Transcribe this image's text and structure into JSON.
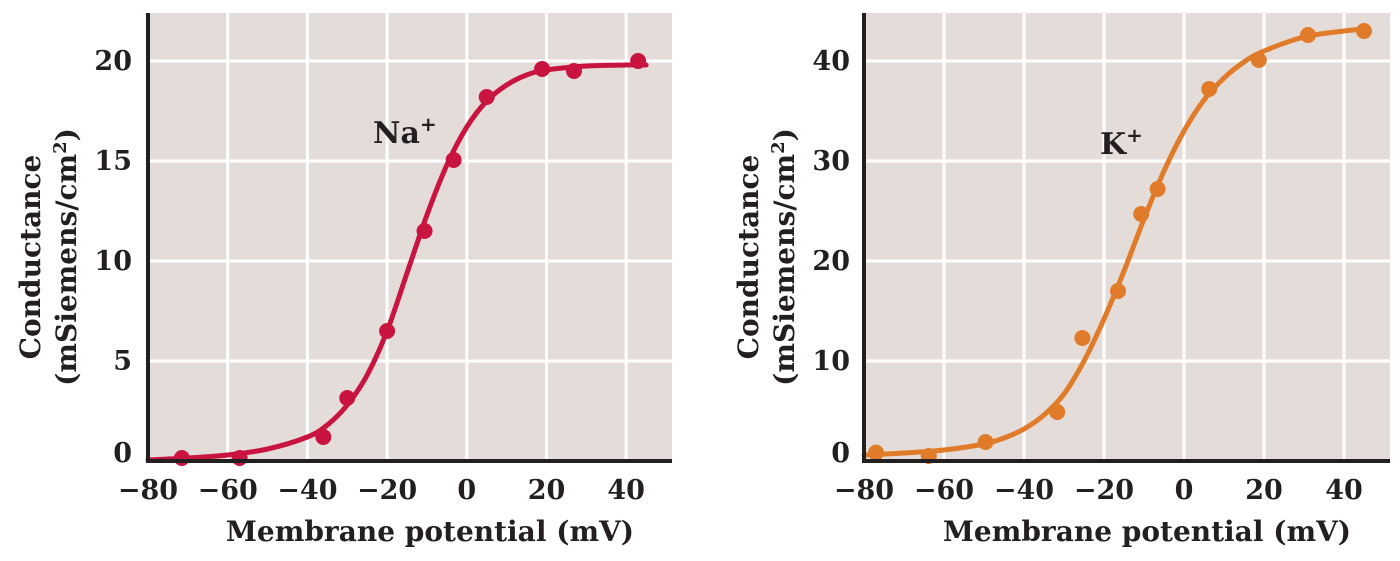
{
  "chart_data": [
    {
      "type": "scatter",
      "title": "",
      "series_label": "Na",
      "series_label_sup": "+",
      "xlabel": "Membrane potential (mV)",
      "ylabel_line1": "Conductance",
      "ylabel_line2": "(mSiemens/cm",
      "ylabel_sup": "2",
      "ylabel_close": ")",
      "xlim": [
        -80,
        51.5
      ],
      "ylim": [
        0,
        22.4
      ],
      "xticks": [
        -80,
        -60,
        -40,
        -20,
        0,
        20,
        40
      ],
      "xtick_labels": [
        "−80",
        "−60",
        "−40",
        "−20",
        "0",
        "20",
        "40"
      ],
      "yticks": [
        0,
        5,
        10,
        15,
        20
      ],
      "ytick_labels": [
        "0",
        "5",
        "10",
        "15",
        "20"
      ],
      "grid": true,
      "color": "#c8143f",
      "points": [
        {
          "x": -71.5,
          "y": 0.15
        },
        {
          "x": -57,
          "y": 0.15
        },
        {
          "x": -36,
          "y": 1.2
        },
        {
          "x": -30,
          "y": 3.15
        },
        {
          "x": -20,
          "y": 6.5
        },
        {
          "x": -10.6,
          "y": 11.5
        },
        {
          "x": -3.3,
          "y": 15.05
        },
        {
          "x": 5,
          "y": 18.2
        },
        {
          "x": 18.9,
          "y": 19.6
        },
        {
          "x": 26.9,
          "y": 19.5
        },
        {
          "x": 43,
          "y": 20.0
        }
      ],
      "fit_curve": [
        [
          -80,
          0.05
        ],
        [
          -70,
          0.15
        ],
        [
          -60,
          0.3
        ],
        [
          -50,
          0.6
        ],
        [
          -40,
          1.2
        ],
        [
          -35,
          1.8
        ],
        [
          -30,
          2.8
        ],
        [
          -25,
          4.3
        ],
        [
          -20,
          6.5
        ],
        [
          -15,
          9.4
        ],
        [
          -10,
          12.3
        ],
        [
          -5,
          14.8
        ],
        [
          0,
          16.7
        ],
        [
          5,
          18.0
        ],
        [
          10,
          18.8
        ],
        [
          15,
          19.3
        ],
        [
          20,
          19.55
        ],
        [
          30,
          19.75
        ],
        [
          40,
          19.8
        ],
        [
          45,
          19.8
        ]
      ],
      "label_position": {
        "x": -18,
        "y": 16.3
      }
    },
    {
      "type": "scatter",
      "title": "",
      "series_label": "K",
      "series_label_sup": "+",
      "xlabel": "Membrane potential (mV)",
      "ylabel_line1": "Conductance",
      "ylabel_line2": "(mSiemens/cm",
      "ylabel_sup": "2",
      "ylabel_close": ")",
      "xlim": [
        -80,
        51.5
      ],
      "ylim": [
        0,
        44.8
      ],
      "xticks": [
        -80,
        -60,
        -40,
        -20,
        0,
        20,
        40
      ],
      "xtick_labels": [
        "−80",
        "−60",
        "−40",
        "−20",
        "0",
        "20",
        "40"
      ],
      "yticks": [
        0,
        10,
        20,
        30,
        40
      ],
      "ytick_labels": [
        "0",
        "10",
        "20",
        "30",
        "40"
      ],
      "grid": true,
      "color": "#e07b2a",
      "points": [
        {
          "x": -77,
          "y": 0.84
        },
        {
          "x": -63.8,
          "y": 0.5
        },
        {
          "x": -49.6,
          "y": 1.9
        },
        {
          "x": -31.7,
          "y": 4.9
        },
        {
          "x": -25.4,
          "y": 12.3
        },
        {
          "x": -16.5,
          "y": 17.0
        },
        {
          "x": -10.7,
          "y": 24.7
        },
        {
          "x": -6.6,
          "y": 27.2
        },
        {
          "x": 6.3,
          "y": 37.2
        },
        {
          "x": 18.7,
          "y": 40.1
        },
        {
          "x": 31,
          "y": 42.6
        },
        {
          "x": 45,
          "y": 43.0
        }
      ],
      "fit_curve": [
        [
          -80,
          0.6
        ],
        [
          -70,
          0.8
        ],
        [
          -60,
          1.1
        ],
        [
          -50,
          1.7
        ],
        [
          -45,
          2.3
        ],
        [
          -40,
          3.2
        ],
        [
          -35,
          4.6
        ],
        [
          -30,
          6.7
        ],
        [
          -25,
          10.0
        ],
        [
          -20,
          14.2
        ],
        [
          -15,
          19.0
        ],
        [
          -10,
          24.2
        ],
        [
          -5,
          29.0
        ],
        [
          0,
          33.0
        ],
        [
          5,
          36.1
        ],
        [
          10,
          38.3
        ],
        [
          15,
          39.9
        ],
        [
          20,
          41.0
        ],
        [
          30,
          42.4
        ],
        [
          40,
          43.0
        ],
        [
          46,
          43.2
        ]
      ],
      "label_position": {
        "x": -15.5,
        "y": 31.5
      }
    }
  ]
}
